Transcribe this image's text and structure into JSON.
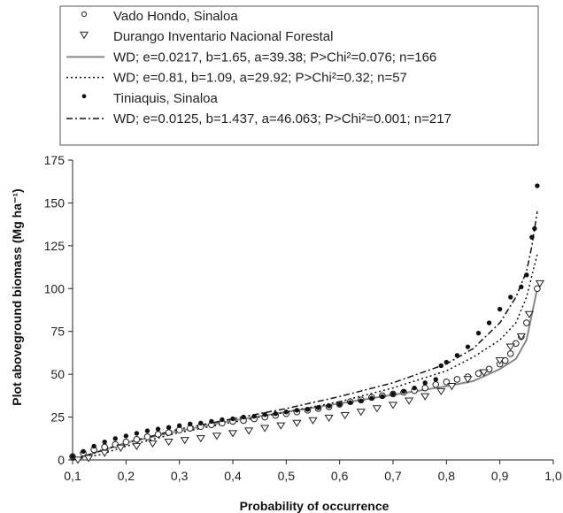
{
  "chart_data": {
    "type": "scatter",
    "xlabel": "Probability of occurrence",
    "ylabel": "Plot aboveground biomass (Mg ha⁻¹)",
    "xlim": [
      0.1,
      1.0
    ],
    "ylim": [
      0,
      175
    ],
    "x_ticks": [
      "0,1",
      "0,2",
      "0,3",
      "0,4",
      "0,5",
      "0,6",
      "0,7",
      "0,8",
      "0,9",
      "1,0"
    ],
    "y_ticks": [
      "0",
      "25",
      "50",
      "75",
      "100",
      "125",
      "150",
      "175"
    ],
    "legend": [
      {
        "marker": "circle-open",
        "label": "Vado Hondo, Sinaloa"
      },
      {
        "marker": "triangle-down-open",
        "label": "Durango Inventario  Nacional Forestal"
      },
      {
        "marker": "line-solid",
        "label": "WD; e=0.0217, b=1.65, a=39.38; P>Chi²=0.076; n=166"
      },
      {
        "marker": "line-dotted",
        "label": "WD; e=0.81, b=1.09, a=29.92; P>Chi²=0.32; n=57"
      },
      {
        "marker": "dot-filled",
        "label": "Tiniaquis, Sinaloa"
      },
      {
        "marker": "line-dashdot",
        "label": "WD; e=0.0125, b=1.437, a=46.063; P>Chi²=0.001; n=217"
      }
    ],
    "series": [
      {
        "name": "Vado Hondo, Sinaloa",
        "marker": "circle-open",
        "points": [
          [
            0.1,
            2
          ],
          [
            0.12,
            4
          ],
          [
            0.14,
            6
          ],
          [
            0.16,
            7.5
          ],
          [
            0.18,
            9
          ],
          [
            0.2,
            10.5
          ],
          [
            0.22,
            12
          ],
          [
            0.24,
            13.5
          ],
          [
            0.26,
            15
          ],
          [
            0.28,
            16
          ],
          [
            0.3,
            17.5
          ],
          [
            0.32,
            18.5
          ],
          [
            0.34,
            19.5
          ],
          [
            0.36,
            20.5
          ],
          [
            0.38,
            21.5
          ],
          [
            0.4,
            22.5
          ],
          [
            0.42,
            23
          ],
          [
            0.44,
            24
          ],
          [
            0.46,
            25
          ],
          [
            0.48,
            26
          ],
          [
            0.5,
            27
          ],
          [
            0.52,
            28
          ],
          [
            0.54,
            29
          ],
          [
            0.56,
            30
          ],
          [
            0.58,
            31
          ],
          [
            0.6,
            32.5
          ],
          [
            0.62,
            34
          ],
          [
            0.64,
            35
          ],
          [
            0.66,
            36.5
          ],
          [
            0.68,
            37.5
          ],
          [
            0.7,
            38.5
          ],
          [
            0.72,
            39.5
          ],
          [
            0.74,
            40.5
          ],
          [
            0.76,
            42
          ],
          [
            0.78,
            44
          ],
          [
            0.8,
            45.5
          ],
          [
            0.82,
            47
          ],
          [
            0.84,
            48.5
          ],
          [
            0.86,
            50.5
          ],
          [
            0.88,
            53
          ],
          [
            0.9,
            56
          ],
          [
            0.91,
            58
          ],
          [
            0.92,
            62
          ],
          [
            0.93,
            68
          ],
          [
            0.94,
            72
          ],
          [
            0.95,
            80
          ],
          [
            0.97,
            100
          ]
        ]
      },
      {
        "name": "Durango Inventario  Nacional Forestal",
        "marker": "triangle-down-open",
        "points": [
          [
            0.11,
            0
          ],
          [
            0.13,
            1
          ],
          [
            0.16,
            4
          ],
          [
            0.19,
            7
          ],
          [
            0.22,
            8
          ],
          [
            0.25,
            9.5
          ],
          [
            0.28,
            10.5
          ],
          [
            0.31,
            11.5
          ],
          [
            0.34,
            12.5
          ],
          [
            0.37,
            14
          ],
          [
            0.4,
            15.5
          ],
          [
            0.43,
            17
          ],
          [
            0.46,
            18.5
          ],
          [
            0.49,
            20
          ],
          [
            0.52,
            21.5
          ],
          [
            0.55,
            23
          ],
          [
            0.58,
            24.5
          ],
          [
            0.61,
            26
          ],
          [
            0.64,
            28
          ],
          [
            0.67,
            30
          ],
          [
            0.7,
            32
          ],
          [
            0.73,
            34.5
          ],
          [
            0.76,
            37
          ],
          [
            0.79,
            40
          ],
          [
            0.81,
            43
          ],
          [
            0.84,
            47
          ],
          [
            0.87,
            51
          ],
          [
            0.9,
            58
          ],
          [
            0.92,
            66
          ],
          [
            0.94,
            72
          ],
          [
            0.955,
            85
          ],
          [
            0.975,
            103
          ]
        ]
      },
      {
        "name": "Tiniaquis, Sinaloa",
        "marker": "dot-filled",
        "points": [
          [
            0.1,
            2
          ],
          [
            0.12,
            5
          ],
          [
            0.14,
            8
          ],
          [
            0.16,
            10.5
          ],
          [
            0.18,
            12.5
          ],
          [
            0.2,
            14
          ],
          [
            0.22,
            15.5
          ],
          [
            0.24,
            17
          ],
          [
            0.26,
            18
          ],
          [
            0.28,
            19
          ],
          [
            0.3,
            20
          ],
          [
            0.32,
            21
          ],
          [
            0.34,
            21.5
          ],
          [
            0.36,
            22.5
          ],
          [
            0.38,
            23.5
          ],
          [
            0.4,
            24
          ],
          [
            0.42,
            25
          ],
          [
            0.44,
            25.5
          ],
          [
            0.46,
            26.5
          ],
          [
            0.48,
            27
          ],
          [
            0.5,
            28
          ],
          [
            0.52,
            29
          ],
          [
            0.54,
            29.5
          ],
          [
            0.56,
            30.5
          ],
          [
            0.58,
            31.5
          ],
          [
            0.6,
            32.5
          ],
          [
            0.62,
            33.5
          ],
          [
            0.64,
            34.5
          ],
          [
            0.66,
            36
          ],
          [
            0.68,
            37
          ],
          [
            0.7,
            38.5
          ],
          [
            0.72,
            40
          ],
          [
            0.74,
            42
          ],
          [
            0.76,
            45
          ],
          [
            0.78,
            47
          ],
          [
            0.79,
            55
          ],
          [
            0.8,
            57
          ],
          [
            0.82,
            61
          ],
          [
            0.84,
            66
          ],
          [
            0.86,
            74
          ],
          [
            0.88,
            80
          ],
          [
            0.9,
            88
          ],
          [
            0.92,
            95
          ],
          [
            0.94,
            101
          ],
          [
            0.95,
            108
          ],
          [
            0.96,
            130
          ],
          [
            0.965,
            135
          ],
          [
            0.97,
            160
          ]
        ]
      }
    ],
    "fit_lines": [
      {
        "style": "solid",
        "label_ref": "WD; e=0.0217, b=1.65, a=39.38; P>Chi²=0.076; n=166",
        "points": [
          [
            0.1,
            0
          ],
          [
            0.15,
            5
          ],
          [
            0.2,
            10
          ],
          [
            0.3,
            17
          ],
          [
            0.4,
            23
          ],
          [
            0.5,
            28
          ],
          [
            0.6,
            33
          ],
          [
            0.7,
            38
          ],
          [
            0.8,
            43
          ],
          [
            0.85,
            46
          ],
          [
            0.9,
            53
          ],
          [
            0.93,
            59
          ],
          [
            0.95,
            70
          ],
          [
            0.97,
            100
          ]
        ]
      },
      {
        "style": "dotted",
        "label_ref": "WD; e=0.81, b=1.09, a=29.92; P>Chi²=0.32; n=57",
        "points": [
          [
            0.1,
            0
          ],
          [
            0.15,
            3
          ],
          [
            0.2,
            8
          ],
          [
            0.3,
            16
          ],
          [
            0.4,
            22
          ],
          [
            0.5,
            28
          ],
          [
            0.6,
            34
          ],
          [
            0.7,
            42
          ],
          [
            0.8,
            52
          ],
          [
            0.85,
            60
          ],
          [
            0.9,
            70
          ],
          [
            0.93,
            80
          ],
          [
            0.95,
            95
          ],
          [
            0.97,
            120
          ]
        ]
      },
      {
        "style": "dashdot",
        "label_ref": "WD; e=0.0125, b=1.437, a=46.063; P>Chi²=0.001; n=217",
        "points": [
          [
            0.1,
            0
          ],
          [
            0.15,
            5
          ],
          [
            0.2,
            10
          ],
          [
            0.3,
            18
          ],
          [
            0.4,
            24
          ],
          [
            0.5,
            30
          ],
          [
            0.6,
            37
          ],
          [
            0.7,
            45
          ],
          [
            0.8,
            56
          ],
          [
            0.85,
            65
          ],
          [
            0.9,
            80
          ],
          [
            0.93,
            95
          ],
          [
            0.95,
            110
          ],
          [
            0.96,
            125
          ],
          [
            0.97,
            145
          ]
        ]
      }
    ]
  }
}
